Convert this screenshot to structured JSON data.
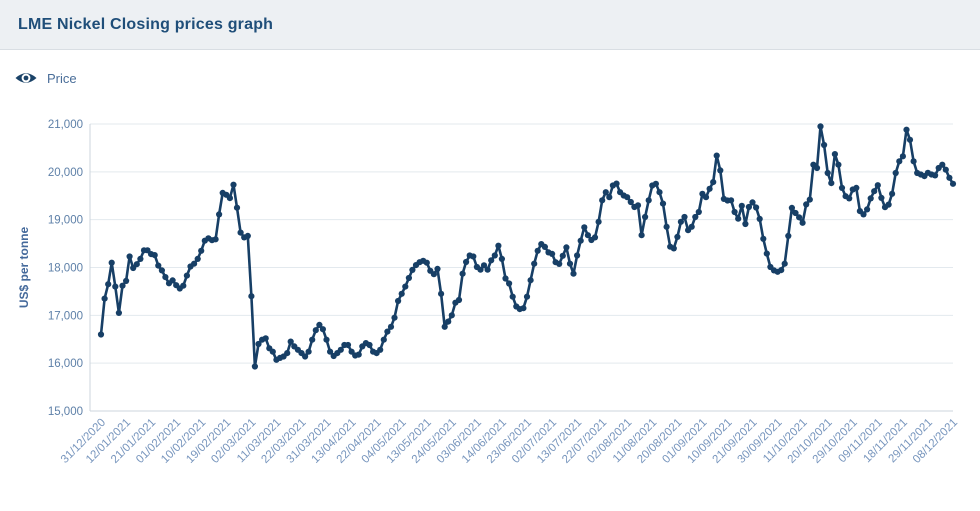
{
  "header": {
    "title": "LME Nickel Closing prices graph"
  },
  "legend": {
    "price_label": "Price",
    "icon": "eye-icon",
    "position": "top-left"
  },
  "colors": {
    "series": "#173f66",
    "title": "#1f4e79",
    "header_bg": "#edf0f3",
    "header_border": "#d9dee3",
    "legend_text": "#4a6e99",
    "y_tick_text": "#5e80a8",
    "x_tick_text": "#7795bd",
    "axis_line": "#cdd5dc",
    "gridline": "#e3e9ee",
    "y_axis_title": "#44699b"
  },
  "chart_data": {
    "type": "line",
    "title": "LME Nickel Closing prices graph",
    "xlabel": "",
    "ylabel": "US$ per tonne",
    "ylim": [
      15000,
      21000
    ],
    "y_ticks": [
      15000,
      16000,
      17000,
      18000,
      19000,
      20000,
      21000
    ],
    "y_tick_labels": [
      "15,000",
      "16,000",
      "17,000",
      "18,000",
      "19,000",
      "20,000",
      "21,000"
    ],
    "grid": "horizontal",
    "legend_position": "top-left",
    "marker": "circle",
    "x_tick_interval_points": 7,
    "x_tick_labels": [
      "31/12/2020",
      "12/01/2021",
      "21/01/2021",
      "01/02/2021",
      "10/02/2021",
      "19/02/2021",
      "02/03/2021",
      "11/03/2021",
      "22/03/2021",
      "31/03/2021",
      "13/04/2021",
      "22/04/2021",
      "04/05/2021",
      "13/05/2021",
      "24/05/2021",
      "03/06/2021",
      "14/06/2021",
      "23/06/2021",
      "02/07/2021",
      "13/07/2021",
      "22/07/2021",
      "02/08/2021",
      "11/08/2021",
      "20/08/2021",
      "01/09/2021",
      "10/09/2021",
      "21/09/2021",
      "30/09/2021",
      "11/10/2021",
      "20/10/2021",
      "29/10/2021",
      "09/11/2021",
      "18/11/2021",
      "29/11/2021",
      "08/12/2021"
    ],
    "series": [
      {
        "name": "Price",
        "color": "#173f66",
        "values": [
          16600,
          17350,
          17650,
          18100,
          17600,
          17050,
          17620,
          17720,
          18230,
          17990,
          18070,
          18180,
          18360,
          18360,
          18280,
          18260,
          18040,
          17940,
          17800,
          17670,
          17730,
          17630,
          17560,
          17620,
          17830,
          18020,
          18080,
          18180,
          18350,
          18560,
          18610,
          18570,
          18590,
          19110,
          19560,
          19520,
          19450,
          19730,
          19250,
          18730,
          18630,
          18660,
          17400,
          15930,
          16400,
          16490,
          16520,
          16310,
          16240,
          16070,
          16110,
          16140,
          16210,
          16450,
          16350,
          16280,
          16210,
          16140,
          16240,
          16490,
          16690,
          16800,
          16710,
          16490,
          16240,
          16150,
          16210,
          16280,
          16380,
          16380,
          16240,
          16160,
          16180,
          16350,
          16420,
          16380,
          16240,
          16210,
          16280,
          16490,
          16660,
          16760,
          16950,
          17300,
          17450,
          17600,
          17780,
          17950,
          18050,
          18110,
          18140,
          18100,
          17930,
          17860,
          17970,
          17450,
          16760,
          16870,
          17000,
          17265,
          17320,
          17870,
          18115,
          18250,
          18230,
          18010,
          17955,
          18045,
          17955,
          18150,
          18250,
          18455,
          18180,
          17770,
          17665,
          17390,
          17185,
          17130,
          17150,
          17390,
          17735,
          18080,
          18350,
          18490,
          18430,
          18315,
          18285,
          18110,
          18075,
          18245,
          18420,
          18080,
          17870,
          18250,
          18560,
          18840,
          18675,
          18575,
          18630,
          18955,
          19405,
          19575,
          19470,
          19715,
          19755,
          19575,
          19505,
          19470,
          19370,
          19265,
          19300,
          18675,
          19055,
          19405,
          19715,
          19750,
          19575,
          19335,
          18850,
          18435,
          18400,
          18640,
          18955,
          19055,
          18780,
          18850,
          19055,
          19160,
          19540,
          19470,
          19645,
          19785,
          20340,
          20030,
          19435,
          19400,
          19405,
          19160,
          19020,
          19290,
          18910,
          19265,
          19360,
          19255,
          19015,
          18600,
          18290,
          18010,
          17940,
          17910,
          17945,
          18080,
          18660,
          19245,
          19140,
          19050,
          18935,
          19320,
          19420,
          20150,
          20080,
          20950,
          20560,
          19975,
          19765,
          20370,
          20150,
          19665,
          19490,
          19445,
          19630,
          19665,
          19180,
          19110,
          19215,
          19445,
          19595,
          19720,
          19455,
          19260,
          19315,
          19540,
          19975,
          20220,
          20325,
          20880,
          20670,
          20220,
          19975,
          19945,
          19910,
          19980,
          19945,
          19925,
          20080,
          20150,
          20045,
          19875,
          19750
        ]
      }
    ]
  }
}
